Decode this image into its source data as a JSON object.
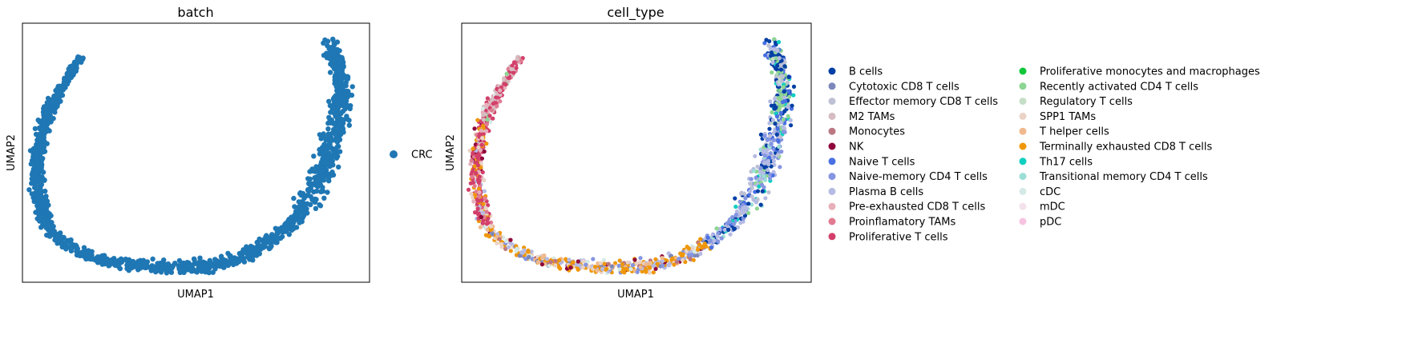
{
  "chart_data": [
    {
      "type": "scatter",
      "title": "batch",
      "xlabel": "UMAP1",
      "ylabel": "UMAP2",
      "xlim": [
        0,
        10
      ],
      "ylim": [
        0,
        10
      ],
      "grid": false,
      "ticks": "none",
      "legend_placement": "right",
      "series": [
        {
          "name": "CRC",
          "color": "#1f77b4"
        }
      ],
      "points_description_curve": {
        "x": [
          1.7,
          1.3,
          0.9,
          0.6,
          0.45,
          0.4,
          0.45,
          0.6,
          0.8,
          1.2,
          1.8,
          2.6,
          3.6,
          4.6,
          5.6,
          6.4,
          7.2,
          7.9,
          8.4,
          8.7,
          8.9,
          9.1,
          9.2,
          9.15,
          9.0,
          8.8
        ],
        "y": [
          8.7,
          7.9,
          7.0,
          6.0,
          5.1,
          4.2,
          3.3,
          2.6,
          2.0,
          1.5,
          1.05,
          0.75,
          0.6,
          0.55,
          0.7,
          1.0,
          1.6,
          2.5,
          3.5,
          4.5,
          5.5,
          6.5,
          7.4,
          8.1,
          8.8,
          9.4
        ]
      }
    },
    {
      "type": "scatter",
      "title": "cell_type",
      "xlabel": "UMAP1",
      "ylabel": "UMAP2",
      "xlim": [
        0,
        10
      ],
      "ylim": [
        0,
        10
      ],
      "grid": false,
      "ticks": "none",
      "legend_placement": "right",
      "series": [
        {
          "name": "B cells",
          "color": "#023fa5"
        },
        {
          "name": "Cytotoxic CD8 T cells",
          "color": "#7d87b9"
        },
        {
          "name": "Effector memory CD8 T cells",
          "color": "#bec1d4"
        },
        {
          "name": "M2 TAMs",
          "color": "#d6bcc0"
        },
        {
          "name": "Monocytes",
          "color": "#bb7784"
        },
        {
          "name": "NK",
          "color": "#8e063b"
        },
        {
          "name": "Naive T cells",
          "color": "#4a6fe3"
        },
        {
          "name": "Naive-memory CD4 T cells",
          "color": "#8595e1"
        },
        {
          "name": "Plasma B cells",
          "color": "#b5bbe3"
        },
        {
          "name": "Pre-exhausted CD8 T cells",
          "color": "#e6afb9"
        },
        {
          "name": "Proinflamatory TAMs",
          "color": "#e07b91"
        },
        {
          "name": "Proliferative T cells",
          "color": "#d33f6a"
        },
        {
          "name": "Proliferative monocytes and macrophages",
          "color": "#11c638"
        },
        {
          "name": "Recently activated CD4 T cells",
          "color": "#8dd593"
        },
        {
          "name": "Regulatory T cells",
          "color": "#c6dec7"
        },
        {
          "name": "SPP1 TAMs",
          "color": "#ead3c6"
        },
        {
          "name": "T helper cells",
          "color": "#f0b98d"
        },
        {
          "name": "Terminally exhausted CD8 T cells",
          "color": "#ef9708"
        },
        {
          "name": "Th17 cells",
          "color": "#0fcfc0"
        },
        {
          "name": "Transitional memory CD4 T cells",
          "color": "#9cded6"
        },
        {
          "name": "cDC",
          "color": "#d5eae7"
        },
        {
          "name": "mDC",
          "color": "#f3e1eb"
        },
        {
          "name": "pDC",
          "color": "#f6c4e1"
        }
      ]
    }
  ]
}
